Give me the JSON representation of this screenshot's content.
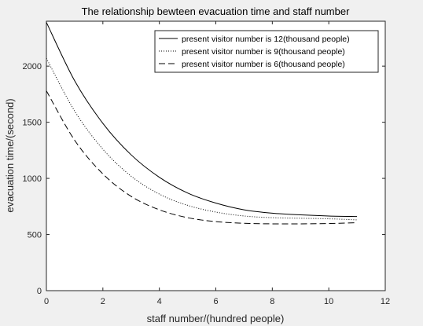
{
  "chart_data": {
    "type": "line",
    "title": "The relationship bewteen evacuation time and staff number",
    "xlabel": "staff number/(hundred people)",
    "ylabel": "evacuation time/(second)",
    "xlim": [
      0,
      12
    ],
    "ylim": [
      0,
      2400
    ],
    "xticks": [
      0,
      2,
      4,
      6,
      8,
      10,
      12
    ],
    "yticks": [
      0,
      500,
      1000,
      1500,
      2000
    ],
    "grid": false,
    "legend_position": "top-right",
    "x": [
      0,
      1,
      2,
      3,
      4,
      5,
      6,
      7,
      8,
      9,
      10,
      11
    ],
    "series": [
      {
        "name": "present visitor number is 12(thousand people)",
        "style": "solid",
        "values": [
          2390,
          1870,
          1490,
          1210,
          1010,
          870,
          780,
          720,
          690,
          675,
          665,
          660
        ]
      },
      {
        "name": "present visitor number is 9(thousand people)",
        "style": "dotted",
        "values": [
          2070,
          1600,
          1260,
          1020,
          860,
          760,
          700,
          665,
          650,
          645,
          640,
          630
        ]
      },
      {
        "name": "present visitor number is 6(thousand people)",
        "style": "dashed",
        "values": [
          1780,
          1340,
          1040,
          840,
          720,
          650,
          615,
          600,
          595,
          595,
          598,
          605
        ]
      }
    ],
    "colors": {
      "background": "#f0f0f0",
      "plot_area": "#ffffff",
      "axes": "#262626",
      "lines": "#000000"
    }
  }
}
